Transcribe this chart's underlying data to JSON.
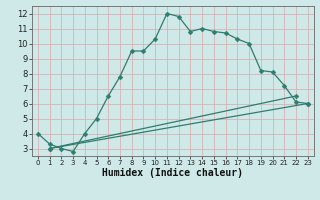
{
  "xlabel": "Humidex (Indice chaleur)",
  "bg_color": "#cfe8e8",
  "grid_color": "#b8d4d4",
  "line_color": "#2e7d6e",
  "xlim": [
    -0.5,
    23.5
  ],
  "ylim": [
    2.5,
    12.5
  ],
  "xticks": [
    0,
    1,
    2,
    3,
    4,
    5,
    6,
    7,
    8,
    9,
    10,
    11,
    12,
    13,
    14,
    15,
    16,
    17,
    18,
    19,
    20,
    21,
    22,
    23
  ],
  "yticks": [
    3,
    4,
    5,
    6,
    7,
    8,
    9,
    10,
    11,
    12
  ],
  "curve1_x": [
    0,
    1,
    2,
    3,
    4,
    5,
    6,
    7,
    8,
    9,
    10,
    11,
    12,
    13,
    14,
    15,
    16,
    17,
    18,
    19,
    20,
    21,
    22,
    23
  ],
  "curve1_y": [
    4.0,
    3.3,
    3.0,
    2.8,
    4.0,
    5.0,
    6.5,
    7.8,
    9.5,
    9.5,
    10.3,
    12.0,
    11.8,
    10.8,
    11.0,
    10.8,
    10.7,
    10.3,
    10.0,
    8.2,
    8.1,
    7.2,
    6.1,
    6.0
  ],
  "curve2_x": [
    1,
    22
  ],
  "curve2_y": [
    3.0,
    6.5
  ],
  "curve3_x": [
    1,
    23
  ],
  "curve3_y": [
    3.0,
    6.0
  ],
  "marker_size": 2.5,
  "line_width": 0.9,
  "xlabel_fontsize": 7,
  "tick_fontsize": 6
}
